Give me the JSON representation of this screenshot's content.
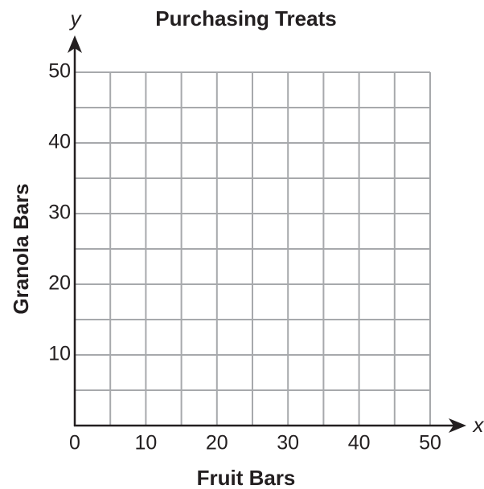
{
  "chart_data": {
    "type": "scatter",
    "title": "Purchasing Treats",
    "x_label": "Fruit Bars",
    "y_label": "Granola Bars",
    "x_axis_letter": "x",
    "y_axis_letter": "y",
    "xlim": [
      0,
      50
    ],
    "ylim": [
      0,
      50
    ],
    "xticks": [
      0,
      10,
      20,
      30,
      40,
      50
    ],
    "yticks": [
      10,
      20,
      30,
      40,
      50
    ],
    "xminorticks": [
      5,
      15,
      25,
      35,
      45
    ],
    "yminorticks": [
      5,
      15,
      25,
      35,
      45
    ],
    "grid": true
  }
}
